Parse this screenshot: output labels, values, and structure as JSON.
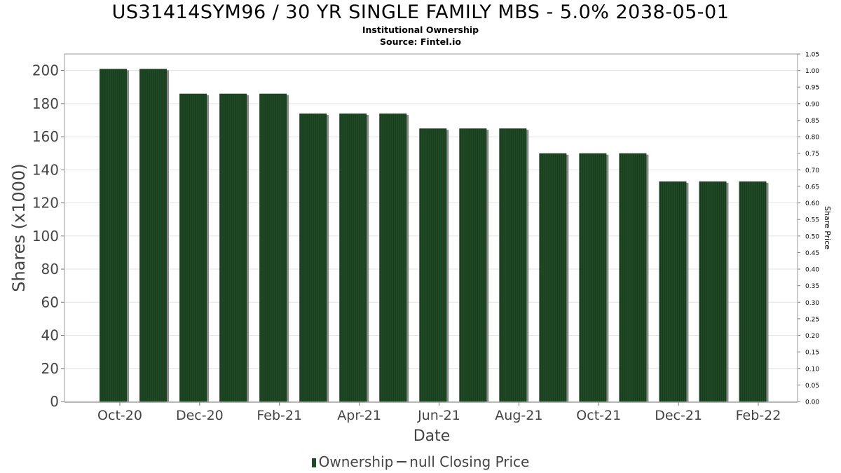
{
  "chart_data": {
    "type": "bar",
    "title": "US31414SYM96 / 30 YR SINGLE FAMILY MBS - 5.0% 2038-05-01",
    "subtitle": "Institutional Ownership",
    "source": "Source: Fintel.io",
    "xlabel": "Date",
    "ylabel": "Shares (x1000)",
    "y2label": "Share Price",
    "ylim": [
      0,
      210
    ],
    "y2lim": [
      0,
      1.05
    ],
    "yticks": [
      0,
      20,
      40,
      60,
      80,
      100,
      120,
      140,
      160,
      180,
      200
    ],
    "y2ticks": [
      "0.00",
      "0.05",
      "0.10",
      "0.15",
      "0.20",
      "0.25",
      "0.30",
      "0.35",
      "0.40",
      "0.45",
      "0.50",
      "0.55",
      "0.60",
      "0.65",
      "0.70",
      "0.75",
      "0.80",
      "0.85",
      "0.90",
      "0.95",
      "1.00",
      "1.05"
    ],
    "xticks": [
      "Oct-20",
      "Dec-20",
      "Feb-21",
      "Apr-21",
      "Jun-21",
      "Aug-21",
      "Oct-21",
      "Dec-21",
      "Feb-22"
    ],
    "grid": true,
    "legend_position": "bottom",
    "colors": {
      "bar": "#1f4a25",
      "bar_shadow": "#8a8a8a",
      "grid": "#e2e2e2"
    },
    "series": [
      {
        "name": "Ownership",
        "values": [
          201,
          201,
          186,
          186,
          186,
          174,
          174,
          174,
          165,
          165,
          165,
          150,
          150,
          150,
          133,
          133,
          133
        ]
      },
      {
        "name": "null Closing Price",
        "values": []
      }
    ]
  },
  "legend": {
    "ownership_label": "Ownership",
    "price_label": "null Closing Price"
  }
}
